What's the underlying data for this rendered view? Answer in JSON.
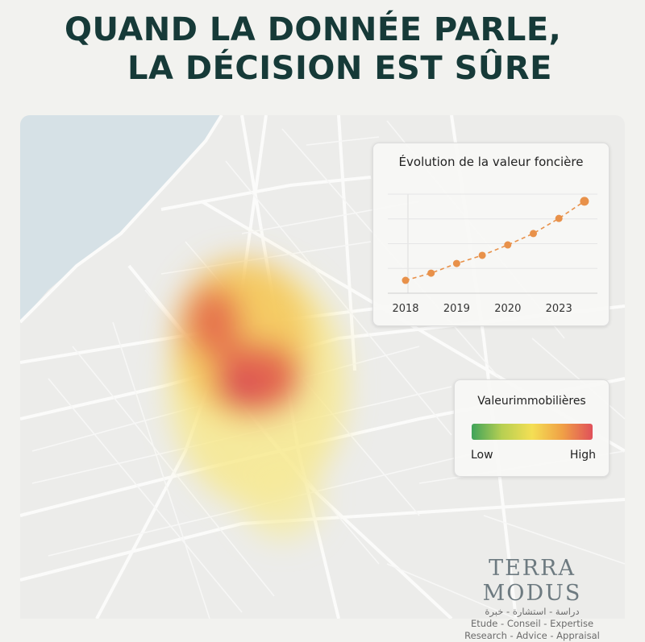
{
  "header": {
    "line1": "QUAND LA DONNÉE PARLE,",
    "line2": "LA DÉCISION EST SÛRE"
  },
  "chart_data": {
    "type": "line",
    "title": "Évolution de la valeur foncière",
    "categories": [
      "2018",
      null,
      "2019",
      null,
      "2020",
      null,
      "2023",
      null
    ],
    "values": [
      0.52,
      0.81,
      1.2,
      1.53,
      1.95,
      2.41,
      3.02,
      3.71
    ],
    "color": "#e8914a",
    "ylim": [
      0,
      4
    ],
    "yticks": [
      0,
      1,
      2,
      3,
      4
    ],
    "grid": true
  },
  "legend": {
    "title": "Valeurimmobilières",
    "low": "Low",
    "high": "High"
  },
  "logo": {
    "brand": "TERRA MODUS",
    "arabic": "دراسة - استشارة - خبرة",
    "fr": "Etude - Conseil - Expertise",
    "en": "Research - Advice - Appraisal"
  }
}
